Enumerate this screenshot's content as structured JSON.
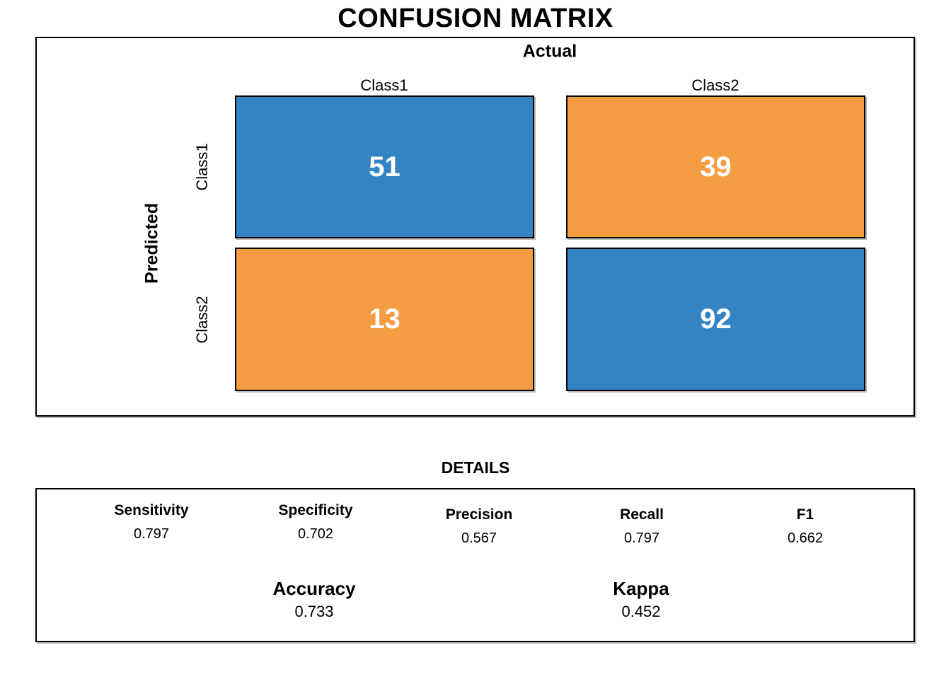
{
  "title": "CONFUSION MATRIX",
  "colors": {
    "match_cell": "#3484C4",
    "mismatch_cell": "#F49D43",
    "cell_text": "#ffffff",
    "border": "#000000"
  },
  "matrix": {
    "column_axis_label": "Actual",
    "row_axis_label": "Predicted",
    "column_headers": [
      "Class1",
      "Class2"
    ],
    "row_headers": [
      "Class1",
      "Class2"
    ],
    "cells": [
      {
        "row": "Class1",
        "col": "Class1",
        "value": "51",
        "color": "#3484C4"
      },
      {
        "row": "Class1",
        "col": "Class2",
        "value": "39",
        "color": "#F49D43"
      },
      {
        "row": "Class2",
        "col": "Class1",
        "value": "13",
        "color": "#F49D43"
      },
      {
        "row": "Class2",
        "col": "Class2",
        "value": "92",
        "color": "#3484C4"
      }
    ]
  },
  "details": {
    "heading": "DETAILS",
    "metrics": [
      {
        "label": "Sensitivity",
        "value": "0.797"
      },
      {
        "label": "Specificity",
        "value": "0.702"
      },
      {
        "label": "Precision",
        "value": "0.567"
      },
      {
        "label": "Recall",
        "value": "0.797"
      },
      {
        "label": "F1",
        "value": "0.662"
      }
    ],
    "summary": [
      {
        "label": "Accuracy",
        "value": "0.733"
      },
      {
        "label": "Kappa",
        "value": "0.452"
      }
    ]
  },
  "chart_data": {
    "type": "heatmap",
    "title": "CONFUSION MATRIX",
    "x_axis_label": "Actual",
    "y_axis_label": "Predicted",
    "x_categories": [
      "Class1",
      "Class2"
    ],
    "y_categories": [
      "Class1",
      "Class2"
    ],
    "matrix_rows_predicted_by_cols_actual": [
      [
        51,
        39
      ],
      [
        13,
        92
      ]
    ],
    "cell_colors": [
      [
        "#3484C4",
        "#F49D43"
      ],
      [
        "#F49D43",
        "#3484C4"
      ]
    ],
    "details_heading": "DETAILS",
    "stats": {
      "Sensitivity": 0.797,
      "Specificity": 0.702,
      "Precision": 0.567,
      "Recall": 0.797,
      "F1": 0.662,
      "Accuracy": 0.733,
      "Kappa": 0.452
    },
    "legend": "none",
    "grid": "off"
  }
}
